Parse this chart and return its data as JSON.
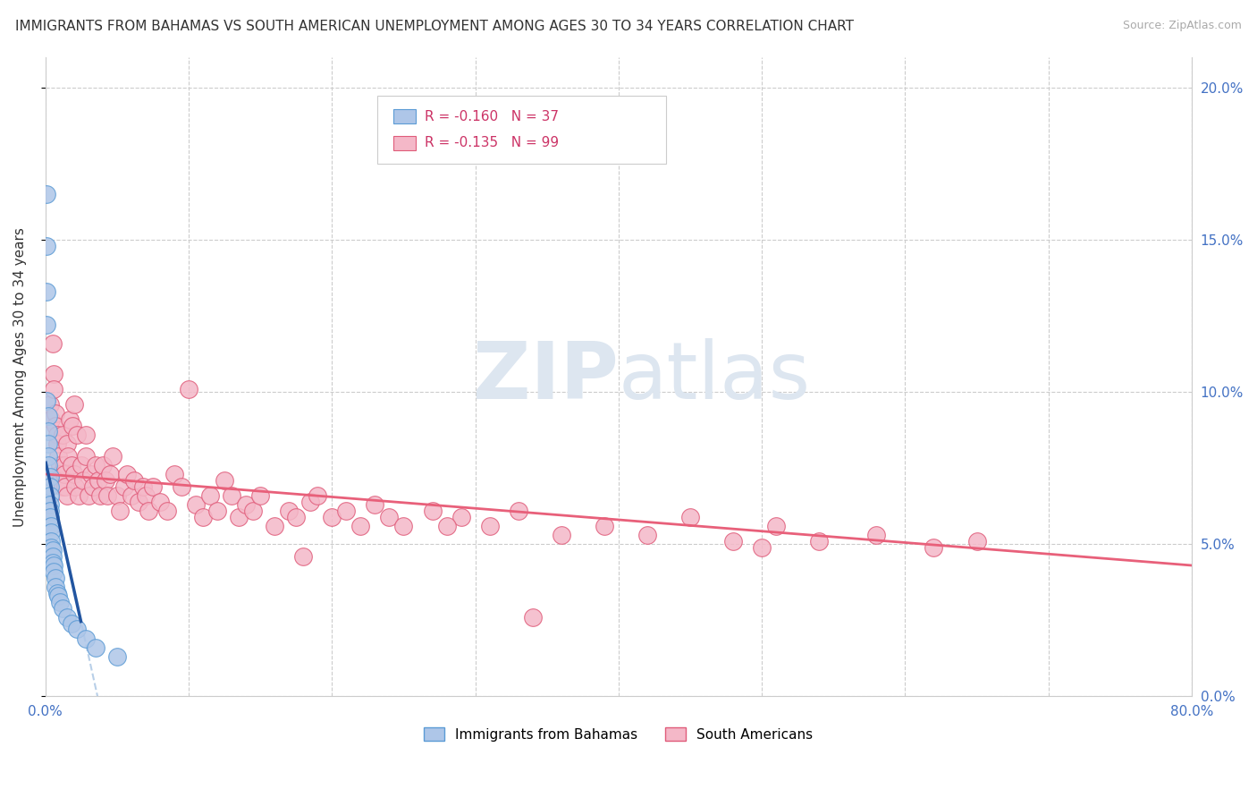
{
  "title": "IMMIGRANTS FROM BAHAMAS VS SOUTH AMERICAN UNEMPLOYMENT AMONG AGES 30 TO 34 YEARS CORRELATION CHART",
  "source": "Source: ZipAtlas.com",
  "ylabel": "Unemployment Among Ages 30 to 34 years",
  "x_min": 0.0,
  "x_max": 0.8,
  "y_min": 0.0,
  "y_max": 0.21,
  "y_ticks": [
    0.0,
    0.05,
    0.1,
    0.15,
    0.2
  ],
  "y_tick_labels": [
    "0.0%",
    "5.0%",
    "10.0%",
    "15.0%",
    "20.0%"
  ],
  "bahamas_color": "#aec6e8",
  "bahamas_edge_color": "#5b9bd5",
  "south_american_color": "#f4b8c8",
  "south_american_edge_color": "#e05c7a",
  "legend_R_bahamas": "R = -0.160",
  "legend_N_bahamas": "N = 37",
  "legend_R_south": "R = -0.135",
  "legend_N_south": "N = 99",
  "trend_bahamas_color": "#2255a0",
  "trend_south_color": "#e8607a",
  "trend_bahamas_dashed_color": "#b8cfe8",
  "watermark_zip": "ZIP",
  "watermark_atlas": "atlas",
  "bahamas_x": [
    0.001,
    0.001,
    0.001,
    0.001,
    0.001,
    0.002,
    0.002,
    0.002,
    0.002,
    0.002,
    0.003,
    0.003,
    0.003,
    0.003,
    0.003,
    0.003,
    0.004,
    0.004,
    0.004,
    0.004,
    0.005,
    0.005,
    0.005,
    0.006,
    0.006,
    0.007,
    0.007,
    0.008,
    0.009,
    0.01,
    0.012,
    0.015,
    0.018,
    0.022,
    0.028,
    0.035,
    0.05
  ],
  "bahamas_y": [
    0.165,
    0.148,
    0.133,
    0.122,
    0.097,
    0.092,
    0.087,
    0.083,
    0.079,
    0.076,
    0.072,
    0.069,
    0.066,
    0.063,
    0.061,
    0.059,
    0.056,
    0.054,
    0.051,
    0.049,
    0.048,
    0.046,
    0.044,
    0.043,
    0.041,
    0.039,
    0.036,
    0.034,
    0.033,
    0.031,
    0.029,
    0.026,
    0.024,
    0.022,
    0.019,
    0.016,
    0.013
  ],
  "south_x": [
    0.003,
    0.004,
    0.005,
    0.006,
    0.006,
    0.007,
    0.007,
    0.008,
    0.008,
    0.009,
    0.01,
    0.01,
    0.011,
    0.012,
    0.012,
    0.013,
    0.013,
    0.014,
    0.015,
    0.015,
    0.016,
    0.017,
    0.018,
    0.019,
    0.02,
    0.02,
    0.021,
    0.022,
    0.023,
    0.025,
    0.026,
    0.028,
    0.028,
    0.03,
    0.032,
    0.033,
    0.035,
    0.037,
    0.038,
    0.04,
    0.042,
    0.043,
    0.045,
    0.047,
    0.05,
    0.052,
    0.055,
    0.057,
    0.06,
    0.062,
    0.065,
    0.068,
    0.07,
    0.072,
    0.075,
    0.08,
    0.085,
    0.09,
    0.095,
    0.1,
    0.105,
    0.11,
    0.115,
    0.12,
    0.125,
    0.13,
    0.135,
    0.14,
    0.145,
    0.15,
    0.16,
    0.17,
    0.175,
    0.185,
    0.19,
    0.2,
    0.21,
    0.22,
    0.23,
    0.24,
    0.25,
    0.27,
    0.29,
    0.31,
    0.33,
    0.36,
    0.39,
    0.42,
    0.45,
    0.48,
    0.51,
    0.54,
    0.58,
    0.62,
    0.65,
    0.5,
    0.34,
    0.18,
    0.28
  ],
  "south_y": [
    0.096,
    0.091,
    0.116,
    0.106,
    0.101,
    0.093,
    0.089,
    0.086,
    0.083,
    0.079,
    0.076,
    0.073,
    0.071,
    0.069,
    0.086,
    0.076,
    0.073,
    0.069,
    0.066,
    0.083,
    0.079,
    0.091,
    0.076,
    0.089,
    0.073,
    0.096,
    0.069,
    0.086,
    0.066,
    0.076,
    0.071,
    0.079,
    0.086,
    0.066,
    0.073,
    0.069,
    0.076,
    0.071,
    0.066,
    0.076,
    0.071,
    0.066,
    0.073,
    0.079,
    0.066,
    0.061,
    0.069,
    0.073,
    0.066,
    0.071,
    0.064,
    0.069,
    0.066,
    0.061,
    0.069,
    0.064,
    0.061,
    0.073,
    0.069,
    0.101,
    0.063,
    0.059,
    0.066,
    0.061,
    0.071,
    0.066,
    0.059,
    0.063,
    0.061,
    0.066,
    0.056,
    0.061,
    0.059,
    0.064,
    0.066,
    0.059,
    0.061,
    0.056,
    0.063,
    0.059,
    0.056,
    0.061,
    0.059,
    0.056,
    0.061,
    0.053,
    0.056,
    0.053,
    0.059,
    0.051,
    0.056,
    0.051,
    0.053,
    0.049,
    0.051,
    0.049,
    0.026,
    0.046,
    0.056
  ]
}
